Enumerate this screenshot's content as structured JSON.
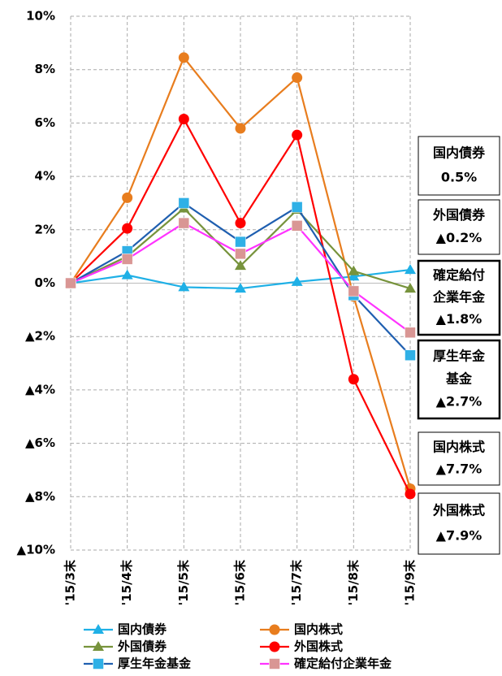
{
  "chart_data": {
    "type": "line",
    "categories": [
      "'15/3末",
      "'15/4末",
      "'15/5末",
      "'15/6末",
      "'15/7末",
      "'15/8末",
      "'15/9末"
    ],
    "ylim": [
      -10,
      10
    ],
    "yticks": [
      {
        "value": 10,
        "label": "10%"
      },
      {
        "value": 8,
        "label": "8%"
      },
      {
        "value": 6,
        "label": "6%"
      },
      {
        "value": 4,
        "label": "4%"
      },
      {
        "value": 2,
        "label": "2%"
      },
      {
        "value": 0,
        "label": "0%"
      },
      {
        "value": -2,
        "label": "▲2%"
      },
      {
        "value": -4,
        "label": "▲4%"
      },
      {
        "value": -6,
        "label": "▲6%"
      },
      {
        "value": -8,
        "label": "▲8%"
      },
      {
        "value": -10,
        "label": "▲10%"
      }
    ],
    "grid": true,
    "series": [
      {
        "name": "国内債券",
        "color": "#1fb0e6",
        "marker": "triangle",
        "marker_color": "#1fb0e6",
        "values": [
          0,
          0.3,
          -0.15,
          -0.2,
          0.05,
          0.25,
          0.5
        ]
      },
      {
        "name": "国内株式",
        "color": "#e87d1e",
        "marker": "circle",
        "marker_color": "#e87d1e",
        "values": [
          0,
          3.2,
          8.45,
          5.8,
          7.7,
          -0.5,
          -7.7
        ]
      },
      {
        "name": "外国債券",
        "color": "#77933c",
        "marker": "triangle",
        "marker_color": "#77933c",
        "values": [
          0,
          1.0,
          2.8,
          0.65,
          2.75,
          0.45,
          -0.2
        ]
      },
      {
        "name": "外国株式",
        "color": "#ff0000",
        "marker": "circle",
        "marker_color": "#ff0000",
        "values": [
          0,
          2.05,
          6.15,
          2.25,
          5.55,
          -3.6,
          -7.9
        ]
      },
      {
        "name": "厚生年金基金",
        "color": "#1f5fb0",
        "marker": "square",
        "marker_color": "#2fb0e6",
        "values": [
          0,
          1.2,
          3.0,
          1.55,
          2.85,
          -0.45,
          -2.7
        ]
      },
      {
        "name": "確定給付企業年金",
        "color": "#ff33ff",
        "marker": "square",
        "marker_color": "#d99694",
        "values": [
          0,
          0.9,
          2.25,
          1.1,
          2.15,
          -0.3,
          -1.85
        ]
      }
    ],
    "annotations": [
      [
        "国内債券",
        "0.5%"
      ],
      [
        "外国債券",
        "▲0.2%"
      ],
      [
        "確定給付",
        "企業年金",
        "▲1.8%"
      ],
      [
        "厚生年金",
        "基金",
        "▲2.7%"
      ],
      [
        "国内株式",
        "▲7.7%"
      ],
      [
        "外国株式",
        "▲7.9%"
      ]
    ]
  }
}
